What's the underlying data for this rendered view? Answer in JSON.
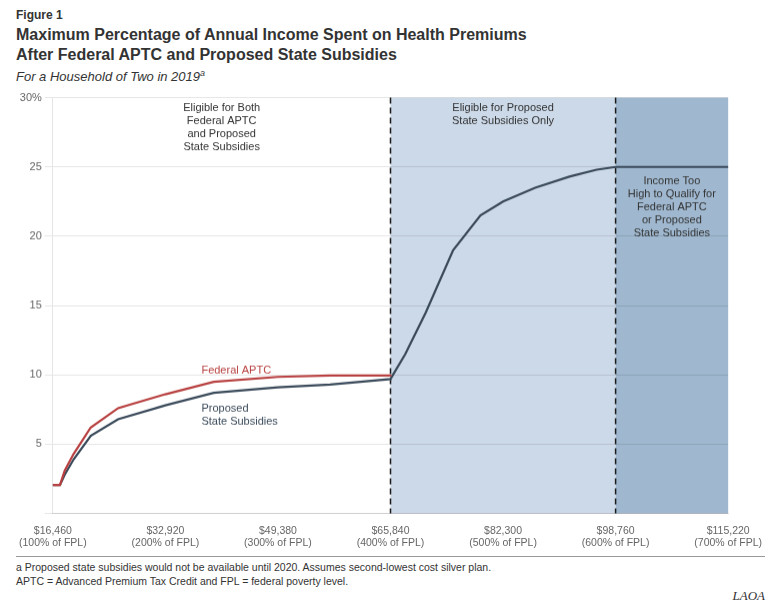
{
  "chart_data": {
    "type": "line",
    "figure_label": "Figure 1",
    "title": "Maximum Percentage of Annual Income Spent on Health Premiums\nAfter Federal APTC and Proposed State Subsidies",
    "subtitle": "For a Household of Two in 2019",
    "subtitle_superscript": "a",
    "footnotes": [
      "a Proposed state subsidies would not be available until 2020. Assumes second-lowest cost silver plan.",
      "APTC = Advanced Premium Tax Credit and FPL = federal poverty level."
    ],
    "logo_text": "LAOA",
    "xlim": [
      16460,
      115220
    ],
    "xticks": [
      {
        "value": 16460,
        "label": "$16,460\n(100% of FPL)"
      },
      {
        "value": 32920,
        "label": "$32,920\n(200% of FPL)"
      },
      {
        "value": 49380,
        "label": "$49,380\n(300% of FPL)"
      },
      {
        "value": 65840,
        "label": "$65,840\n(400% of FPL)"
      },
      {
        "value": 82300,
        "label": "$82,300\n(500% of FPL)"
      },
      {
        "value": 98760,
        "label": "$98,760\n(600% of FPL)"
      },
      {
        "value": 115220,
        "label": "$115,220\n(700% of FPL)"
      }
    ],
    "ylim": [
      0,
      30
    ],
    "yticks": [
      {
        "value": 0,
        "label": null
      },
      5,
      10,
      15,
      20,
      25,
      {
        "value": 30,
        "label": "30%"
      }
    ],
    "grid": true,
    "series": [
      {
        "name": "Federal APTC",
        "color": "#b84040",
        "x": [
          16460,
          17500,
          18200,
          19500,
          22000,
          26000,
          32920,
          40000,
          49380,
          57000,
          65840
        ],
        "values": [
          2.05,
          2.05,
          3.1,
          4.3,
          6.2,
          7.6,
          8.6,
          9.5,
          9.85,
          9.95,
          9.95
        ]
      },
      {
        "name": "Proposed\nState Subsidies",
        "color": "#3a4a5a",
        "x": [
          16460,
          17500,
          18200,
          19500,
          22000,
          26000,
          32920,
          40000,
          49380,
          57000,
          65840,
          68000,
          71000,
          75000,
          79000,
          82300,
          87000,
          92000,
          96000,
          98760,
          115220
        ],
        "values": [
          2.05,
          2.05,
          2.8,
          3.9,
          5.6,
          6.8,
          7.8,
          8.7,
          9.1,
          9.3,
          9.7,
          11.5,
          14.5,
          19.0,
          21.5,
          22.5,
          23.5,
          24.3,
          24.8,
          25.0,
          25.0
        ]
      }
    ],
    "zones": [
      {
        "label": "Eligible for Both\nFederal APTC\nand Proposed\nState Subsidies",
        "start": 16460,
        "end": 65840
      },
      {
        "label": "Eligible for Proposed\nState Subsidies Only",
        "start": 65840,
        "end": 98760,
        "color": "#ccd9e8"
      },
      {
        "label": "Income Too\nHigh to Qualify for\nFederal APTC\nor Proposed\nState Subsidies",
        "start": 98760,
        "end": 115220,
        "color": "#9fb8cf"
      }
    ],
    "vlines": [
      {
        "x": 65840,
        "color": "#1a1a1a",
        "line_style": "dashed"
      },
      {
        "x": 98760,
        "color": "#1a1a1a",
        "line_style": "dashed"
      }
    ]
  }
}
